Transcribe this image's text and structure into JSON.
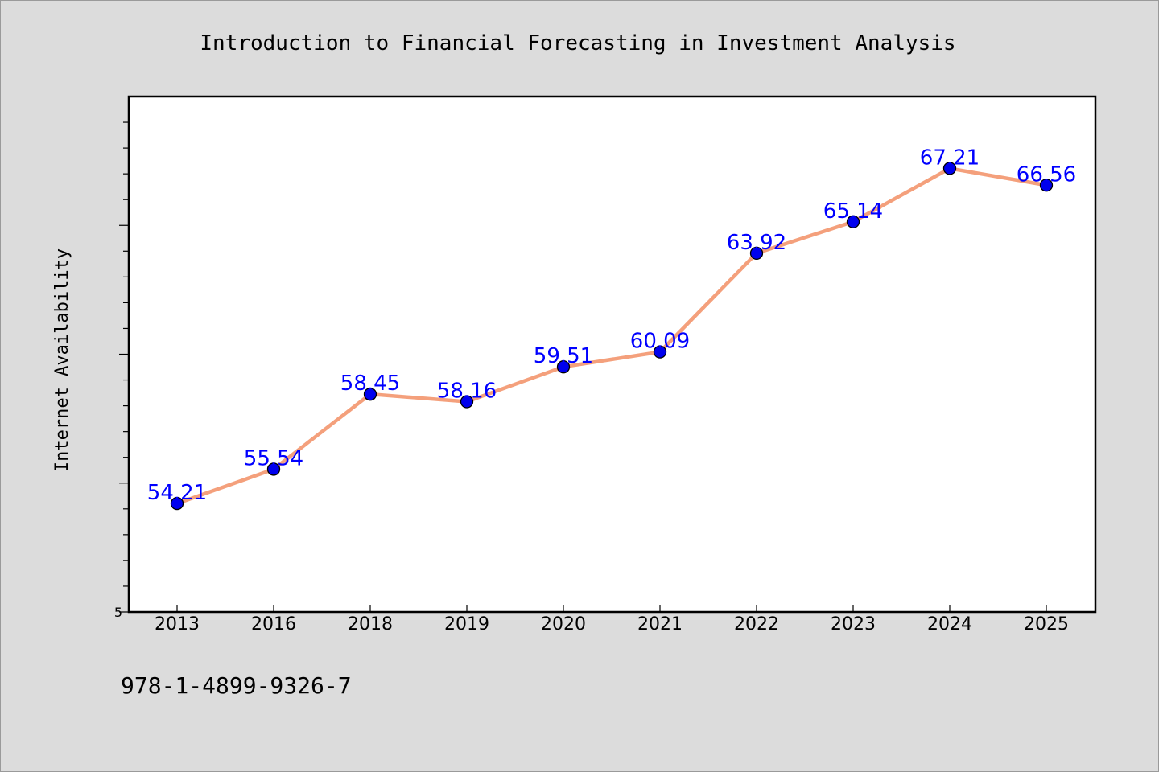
{
  "chart_data": {
    "type": "line",
    "title": "Introduction to Financial Forecasting in Investment Analysis",
    "xlabel": "",
    "ylabel": "Internet Availability",
    "categories": [
      "2013",
      "2016",
      "2018",
      "2019",
      "2020",
      "2021",
      "2022",
      "2023",
      "2024",
      "2025"
    ],
    "series": [
      {
        "values": [
          54.21,
          55.54,
          58.45,
          58.16,
          59.51,
          60.09,
          63.92,
          65.14,
          67.21,
          66.56
        ],
        "data_labels": [
          "54.21",
          "55.54",
          "58.45",
          "58.16",
          "59.51",
          "60.09",
          "63.92",
          "65.14",
          "67.21",
          "66.56"
        ]
      }
    ],
    "ylim": [
      50,
      70
    ],
    "y_tick_labels": [
      "5"
    ],
    "grid": false,
    "legend": "none",
    "colors": {
      "line": "#f4a07c",
      "marker": "#0000ee",
      "data_label": "#0000ff",
      "plot_background": "#ffffff",
      "figure_background": "#dcdcdc"
    }
  },
  "footer": {
    "isbn": "978-1-4899-9326-7"
  }
}
